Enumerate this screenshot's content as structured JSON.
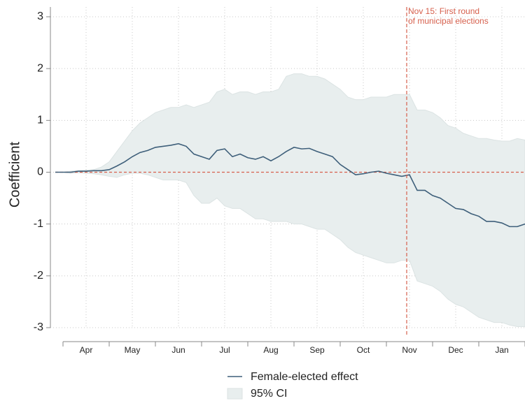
{
  "chart_data": {
    "type": "line",
    "ylabel": "Coefficient",
    "categories": [
      null,
      null,
      null,
      null,
      "Apr",
      null,
      null,
      null,
      null,
      null,
      "May",
      null,
      null,
      null,
      null,
      null,
      "Jun",
      null,
      null,
      null,
      null,
      null,
      "Jul",
      null,
      null,
      null,
      null,
      null,
      "Aug",
      null,
      null,
      null,
      null,
      null,
      "Sep",
      null,
      null,
      null,
      null,
      null,
      "Oct",
      null,
      null,
      null,
      null,
      null,
      "Nov",
      null,
      null,
      null,
      null,
      null,
      "Dec",
      null,
      null,
      null,
      null,
      null,
      "Jan",
      null,
      null,
      null
    ],
    "series": [
      {
        "name": "Female-elected effect",
        "color": "#3e5f7a",
        "values": [
          0,
          0,
          0,
          0.02,
          0.02,
          0.03,
          0.03,
          0.05,
          0.12,
          0.2,
          0.3,
          0.38,
          0.42,
          0.48,
          0.5,
          0.52,
          0.55,
          0.5,
          0.35,
          0.3,
          0.25,
          0.42,
          0.45,
          0.3,
          0.35,
          0.28,
          0.25,
          0.3,
          0.22,
          0.3,
          0.4,
          0.48,
          0.45,
          0.46,
          0.4,
          0.35,
          0.3,
          0.15,
          0.05,
          -0.05,
          -0.03,
          0,
          0.02,
          -0.02,
          -0.05,
          -0.08,
          -0.05,
          -0.35,
          -0.35,
          -0.45,
          -0.5,
          -0.6,
          -0.7,
          -0.72,
          -0.8,
          -0.85,
          -0.95,
          -0.95,
          -0.98,
          -1.05,
          -1.05,
          -1.0
        ]
      }
    ],
    "band": {
      "name": "95% CI",
      "color": "#e8eeee",
      "upper": [
        0,
        0,
        0.02,
        0.03,
        0.04,
        0.05,
        0.1,
        0.2,
        0.4,
        0.6,
        0.8,
        0.95,
        1.05,
        1.15,
        1.2,
        1.25,
        1.25,
        1.3,
        1.25,
        1.3,
        1.35,
        1.55,
        1.6,
        1.5,
        1.55,
        1.55,
        1.5,
        1.55,
        1.55,
        1.6,
        1.85,
        1.9,
        1.9,
        1.85,
        1.85,
        1.8,
        1.7,
        1.6,
        1.45,
        1.4,
        1.4,
        1.45,
        1.45,
        1.45,
        1.5,
        1.5,
        1.5,
        1.2,
        1.2,
        1.15,
        1.05,
        0.9,
        0.85,
        0.75,
        0.7,
        0.65,
        0.65,
        0.62,
        0.6,
        0.6,
        0.65,
        0.62
      ],
      "lower": [
        0,
        0,
        -0.02,
        -0.01,
        -0.02,
        -0.03,
        -0.05,
        -0.08,
        -0.1,
        -0.05,
        -0.02,
        -0.02,
        -0.05,
        -0.1,
        -0.15,
        -0.15,
        -0.15,
        -0.2,
        -0.45,
        -0.6,
        -0.6,
        -0.5,
        -0.65,
        -0.7,
        -0.7,
        -0.8,
        -0.9,
        -0.9,
        -0.95,
        -0.95,
        -0.95,
        -1.0,
        -1.0,
        -1.05,
        -1.1,
        -1.1,
        -1.2,
        -1.3,
        -1.45,
        -1.55,
        -1.6,
        -1.65,
        -1.7,
        -1.75,
        -1.75,
        -1.7,
        -1.7,
        -2.1,
        -2.15,
        -2.2,
        -2.3,
        -2.45,
        -2.55,
        -2.6,
        -2.7,
        -2.8,
        -2.85,
        -2.9,
        -2.9,
        -2.95,
        -2.98,
        -2.98
      ]
    },
    "reference_line": 0,
    "annotation": {
      "lines": [
        "Nov 15: First round",
        "of municipal elections"
      ],
      "color": "#d6604d"
    },
    "ylim": [
      -3,
      3
    ],
    "yticks": [
      -3,
      -2,
      -1,
      0,
      1,
      2,
      3
    ],
    "grid": true
  }
}
